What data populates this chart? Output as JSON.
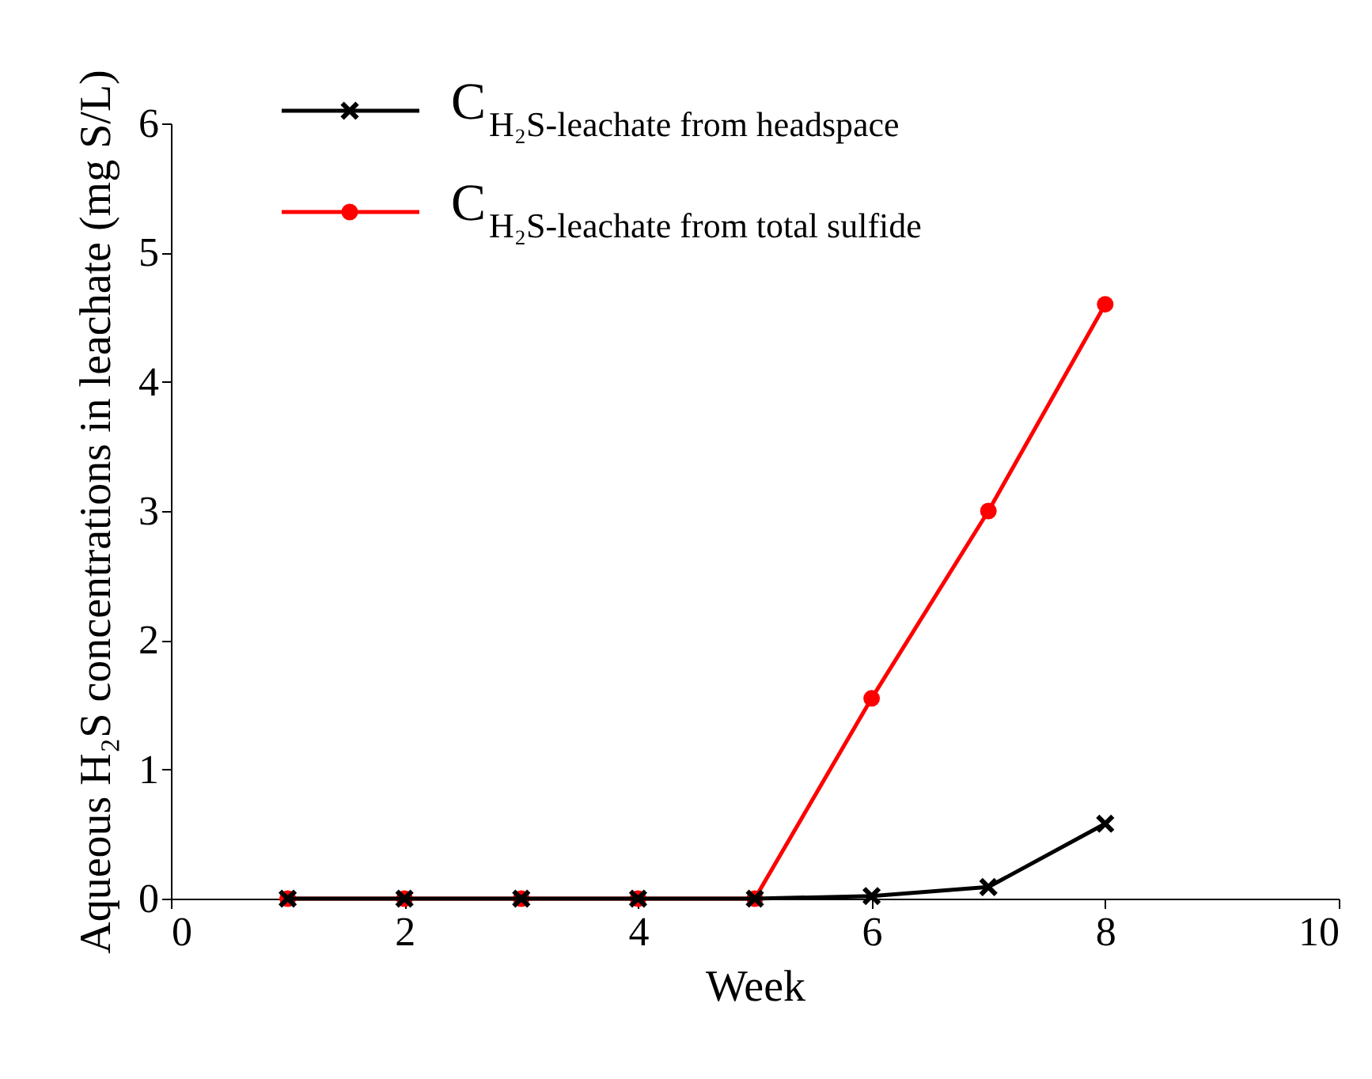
{
  "chart_data": {
    "type": "line",
    "xlabel": "Week",
    "ylabel": "Aqueous H₂S concentrations in leachate (mg S/L)",
    "x": [
      1,
      2,
      3,
      4,
      5,
      6,
      7,
      8
    ],
    "series": [
      {
        "name": "C$_{H₂S-leachate from headspace}$",
        "color": "#000000",
        "marker": "cross",
        "values": [
          0,
          0,
          0,
          0,
          0,
          0.02,
          0.09,
          0.58
        ]
      },
      {
        "name": "C$_{H₂S-leachate from total sulfide}$",
        "color": "#ff0000",
        "marker": "circle",
        "values": [
          0,
          0,
          0,
          0,
          0,
          1.55,
          3.0,
          4.6
        ]
      }
    ],
    "xlim": [
      0,
      10
    ],
    "xticks": [
      0,
      2,
      4,
      6,
      8,
      10
    ],
    "ylim": [
      0,
      6
    ],
    "yticks": [
      0,
      1,
      2,
      3,
      4,
      5,
      6
    ],
    "grid": false,
    "legend": "top left",
    "line_style": "solid"
  }
}
